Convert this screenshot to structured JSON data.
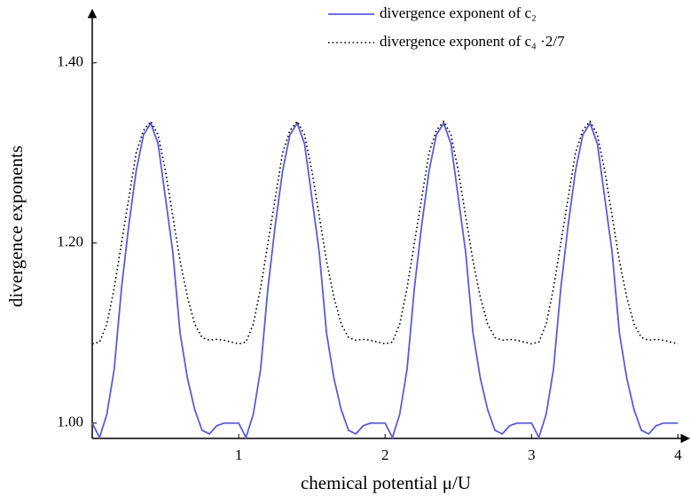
{
  "chart_data": {
    "type": "line",
    "x_label": "chemical potential μ/U",
    "y_label": "divergence exponents",
    "x": [
      0,
      0.05,
      0.1,
      0.15,
      0.2,
      0.25,
      0.3,
      0.35,
      0.4,
      0.45,
      0.5,
      0.55,
      0.6,
      0.65,
      0.7,
      0.75,
      0.8,
      0.85,
      0.9,
      0.95,
      1,
      1.05,
      1.1,
      1.15,
      1.2,
      1.25,
      1.3,
      1.35,
      1.4,
      1.45,
      1.5,
      1.55,
      1.6,
      1.65,
      1.7,
      1.75,
      1.8,
      1.85,
      1.9,
      1.95,
      2,
      2.05,
      2.1,
      2.15,
      2.2,
      2.25,
      2.3,
      2.35,
      2.4,
      2.45,
      2.5,
      2.55,
      2.6,
      2.65,
      2.7,
      2.75,
      2.8,
      2.85,
      2.9,
      2.95,
      3,
      3.05,
      3.1,
      3.15,
      3.2,
      3.25,
      3.3,
      3.35,
      3.4,
      3.45,
      3.5,
      3.55,
      3.6,
      3.65,
      3.7,
      3.75,
      3.8,
      3.85,
      3.9,
      3.95,
      4
    ],
    "series": [
      {
        "name": "divergence exponent of c₂",
        "color": "#5b5bd9",
        "dash": "solid",
        "values": [
          1.0,
          0.984,
          1.01,
          1.06,
          1.15,
          1.22,
          1.28,
          1.32,
          1.333,
          1.31,
          1.25,
          1.19,
          1.1,
          1.05,
          1.015,
          0.992,
          0.988,
          0.997,
          1.0,
          1.0,
          1.0,
          0.984,
          1.01,
          1.06,
          1.15,
          1.22,
          1.28,
          1.32,
          1.333,
          1.31,
          1.25,
          1.19,
          1.1,
          1.05,
          1.015,
          0.992,
          0.988,
          0.997,
          1.0,
          1.0,
          1.0,
          0.984,
          1.01,
          1.06,
          1.15,
          1.22,
          1.28,
          1.32,
          1.333,
          1.31,
          1.25,
          1.19,
          1.1,
          1.05,
          1.015,
          0.992,
          0.988,
          0.997,
          1.0,
          1.0,
          1.0,
          0.984,
          1.01,
          1.06,
          1.15,
          1.22,
          1.28,
          1.32,
          1.333,
          1.31,
          1.25,
          1.19,
          1.1,
          1.05,
          1.015,
          0.992,
          0.988,
          0.997,
          1.0,
          1.0,
          1.0
        ]
      },
      {
        "name": "divergence exponent of c₄ ·2/7",
        "color": "#000000",
        "dash": "dotted",
        "values": [
          1.088,
          1.09,
          1.11,
          1.15,
          1.2,
          1.25,
          1.3,
          1.325,
          1.335,
          1.32,
          1.28,
          1.23,
          1.18,
          1.14,
          1.11,
          1.095,
          1.092,
          1.093,
          1.092,
          1.09,
          1.088,
          1.09,
          1.11,
          1.15,
          1.2,
          1.25,
          1.3,
          1.325,
          1.335,
          1.32,
          1.28,
          1.23,
          1.18,
          1.14,
          1.11,
          1.095,
          1.092,
          1.093,
          1.092,
          1.09,
          1.088,
          1.09,
          1.11,
          1.15,
          1.2,
          1.25,
          1.3,
          1.325,
          1.335,
          1.32,
          1.28,
          1.23,
          1.18,
          1.14,
          1.11,
          1.095,
          1.092,
          1.093,
          1.092,
          1.09,
          1.088,
          1.09,
          1.11,
          1.15,
          1.2,
          1.25,
          1.3,
          1.325,
          1.335,
          1.32,
          1.28,
          1.23,
          1.18,
          1.14,
          1.11,
          1.095,
          1.092,
          1.093,
          1.092,
          1.09,
          1.088
        ]
      }
    ],
    "xlim": [
      0,
      4.07
    ],
    "ylim": [
      0.983,
      1.455
    ],
    "xticks": [
      1,
      2,
      3,
      4
    ],
    "yticks": [
      {
        "value": 1.0,
        "label": "1.00"
      },
      {
        "value": 1.2,
        "label": "1.20"
      },
      {
        "value": 1.4,
        "label": "1.40"
      }
    ],
    "grid": false,
    "legend": "top-right"
  }
}
